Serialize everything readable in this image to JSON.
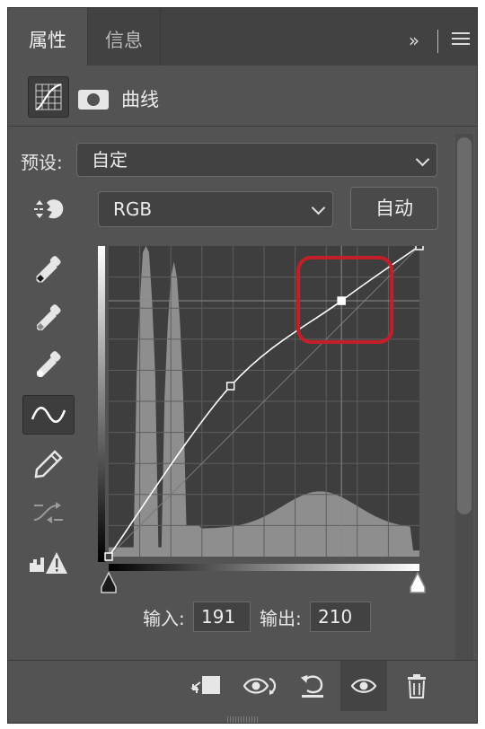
{
  "tabs": [
    {
      "label": "属性",
      "active": true
    },
    {
      "label": "信息",
      "active": false
    }
  ],
  "panel_menu": {
    "expand_icon": "double-chevron-right-icon",
    "menu_icon": "hamburger-menu-icon"
  },
  "adjustment": {
    "title": "曲线",
    "icon": "curves-adjustment-icon",
    "mask_icon": "layer-mask-icon"
  },
  "preset": {
    "label": "预设:",
    "value": "自定"
  },
  "channel": {
    "value": "RGB",
    "auto_label": "自动"
  },
  "tools": [
    "target-adjust-hand-icon",
    "black-point-eyedropper-icon",
    "gray-point-eyedropper-icon",
    "white-point-eyedropper-icon",
    "curve-point-tool-icon",
    "pencil-draw-icon",
    "smooth-curve-icon",
    "clipping-warning-icon"
  ],
  "curve": {
    "input_range": [
      0,
      255
    ],
    "output_range": [
      0,
      255
    ],
    "points": [
      [
        0,
        0
      ],
      [
        100,
        140
      ],
      [
        191,
        210
      ],
      [
        255,
        255
      ]
    ],
    "selected_point": [
      191,
      210
    ],
    "grid_divisions": 10,
    "curve_color": "#ffffff",
    "highlight_color": "#c41e2a"
  },
  "io": {
    "input_label": "输入:",
    "input_value": "191",
    "output_label": "输出:",
    "output_value": "210"
  },
  "bottom_bar": [
    "clip-to-layer-icon",
    "view-previous-state-icon",
    "reset-adjustment-icon",
    "toggle-visibility-icon",
    "delete-layer-icon"
  ]
}
